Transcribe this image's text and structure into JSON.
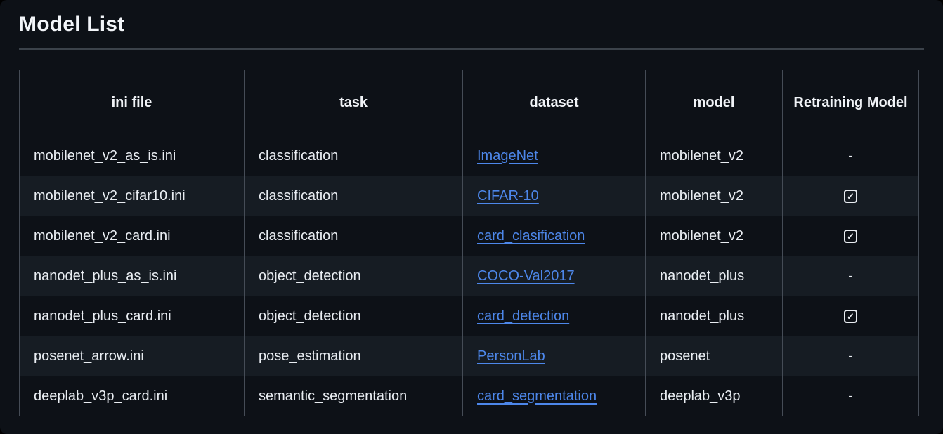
{
  "page": {
    "title": "Model List"
  },
  "colors": {
    "background": "#0d1117",
    "row_alt_background": "#161c23",
    "border": "#454c56",
    "text": "#e9edf2",
    "link": "#4d87ea"
  },
  "table": {
    "headers": [
      "ini file",
      "task",
      "dataset",
      "model",
      "Retraining Model"
    ],
    "dash_char": "-",
    "check_icon": "checked-checkbox-icon",
    "check_glyph": "✓",
    "rows": [
      {
        "ini_file": "mobilenet_v2_as_is.ini",
        "task": "classification",
        "dataset": "ImageNet",
        "model": "mobilenet_v2",
        "retraining": "dash"
      },
      {
        "ini_file": "mobilenet_v2_cifar10.ini",
        "task": "classification",
        "dataset": "CIFAR-10",
        "model": "mobilenet_v2",
        "retraining": "checked"
      },
      {
        "ini_file": "mobilenet_v2_card.ini",
        "task": "classification",
        "dataset": "card_clasification",
        "model": "mobilenet_v2",
        "retraining": "checked"
      },
      {
        "ini_file": "nanodet_plus_as_is.ini",
        "task": "object_detection",
        "dataset": "COCO-Val2017",
        "model": "nanodet_plus",
        "retraining": "dash"
      },
      {
        "ini_file": "nanodet_plus_card.ini",
        "task": "object_detection",
        "dataset": "card_detection",
        "model": "nanodet_plus",
        "retraining": "checked"
      },
      {
        "ini_file": "posenet_arrow.ini",
        "task": "pose_estimation",
        "dataset": "PersonLab",
        "model": "posenet",
        "retraining": "dash"
      },
      {
        "ini_file": "deeplab_v3p_card.ini",
        "task": "semantic_segmentation",
        "dataset": "card_segmentation",
        "model": "deeplab_v3p",
        "retraining": "dash"
      }
    ]
  }
}
